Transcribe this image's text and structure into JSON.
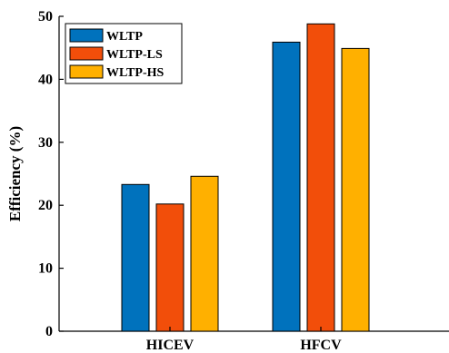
{
  "chart_data": {
    "type": "bar",
    "categories": [
      "HICEV",
      "HFCV"
    ],
    "series": [
      {
        "name": "WLTP",
        "values": [
          23.3,
          45.9
        ],
        "color": "#0072BD"
      },
      {
        "name": "WLTP-LS",
        "values": [
          20.2,
          48.8
        ],
        "color": "#F24E0A"
      },
      {
        "name": "WLTP-HS",
        "values": [
          24.6,
          44.9
        ],
        "color": "#FFB000"
      }
    ],
    "title": "",
    "xlabel": "",
    "ylabel": "Efficiency (%)",
    "ylim": [
      0,
      50
    ],
    "yticks": [
      "0",
      "10",
      "20",
      "30",
      "40",
      "50"
    ],
    "grid": false,
    "legend_position": "top-left"
  }
}
